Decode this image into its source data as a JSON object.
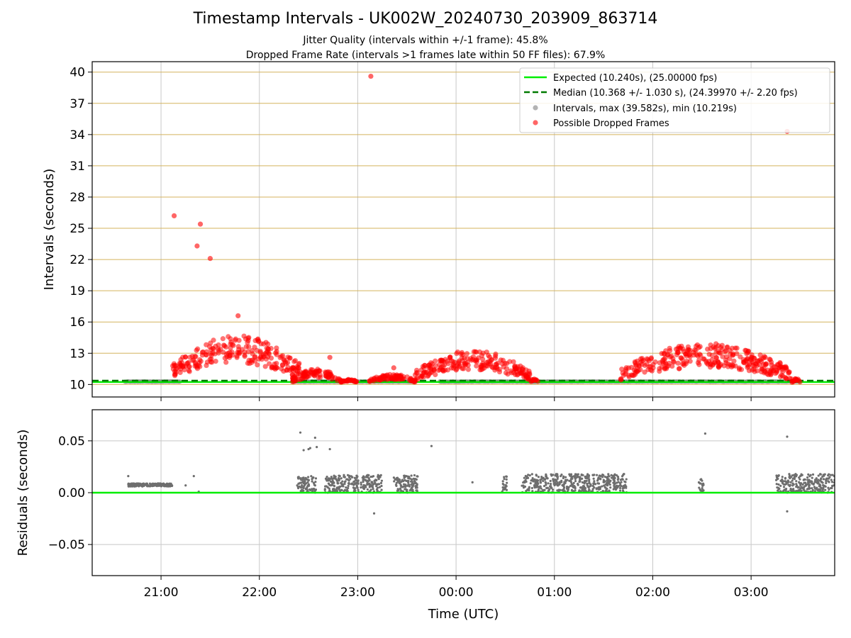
{
  "chart_data": [
    {
      "type": "scatter",
      "title": "Timestamp Intervals - UK002W_20240730_203909_863714",
      "subtitle_1": "Jitter Quality (intervals within +/-1 frame): 45.8%",
      "subtitle_2": "Dropped Frame Rate (intervals >1 frames late within 50 FF files): 67.9%",
      "ylabel": "Intervals (seconds)",
      "xlim": [
        "20:18",
        "03:51"
      ],
      "ylim": [
        8.8,
        41.0
      ],
      "yticks": [
        10,
        13,
        16,
        19,
        22,
        25,
        28,
        31,
        34,
        37,
        40
      ],
      "yticks_labels": [
        "10",
        "13",
        "16",
        "19",
        "22",
        "25",
        "28",
        "31",
        "34",
        "37",
        "40"
      ],
      "grid": "horizontal lines gold, vertical lines grey",
      "legend_position": "top-right",
      "series": [
        {
          "name": "Expected (10.240s), (25.00000 fps)",
          "kind": "hline",
          "value": 10.24,
          "color": "#00ee00"
        },
        {
          "name": "Median (10.368 +/- 1.030 s), (24.39970 +/- 2.20 fps)",
          "kind": "hline-dashed",
          "value": 10.368,
          "color": "#007a00"
        },
        {
          "name": "Intervals, max (39.582s), min (10.219s)",
          "kind": "scatter",
          "color": "#808080",
          "segments": [
            [
              "20:38",
              "21:12"
            ],
            [
              "22:20",
              "22:50"
            ],
            [
              "23:00",
              "23:35"
            ],
            [
              "23:50",
              "00:50"
            ],
            [
              "00:40",
              "01:45"
            ],
            [
              "01:45",
              "03:30"
            ]
          ]
        },
        {
          "name": "Possible Dropped Frames",
          "kind": "scatter",
          "color": "#ff0000",
          "clusters": [
            {
              "start": "21:07",
              "end": "22:25",
              "lo": 10.6,
              "hi": 14.8
            },
            {
              "start": "22:20",
              "end": "22:50",
              "lo": 10.2,
              "hi": 11.5
            },
            {
              "start": "22:50",
              "end": "23:00",
              "lo": 10.2,
              "hi": 10.5
            },
            {
              "start": "23:07",
              "end": "23:35",
              "lo": 10.2,
              "hi": 11.0
            },
            {
              "start": "23:35",
              "end": "00:45",
              "lo": 10.4,
              "hi": 13.3
            },
            {
              "start": "00:45",
              "end": "00:50",
              "lo": 10.2,
              "hi": 10.6
            },
            {
              "start": "01:40",
              "end": "03:25",
              "lo": 10.4,
              "hi": 14.0
            },
            {
              "start": "03:25",
              "end": "03:30",
              "lo": 10.2,
              "hi": 10.6
            }
          ],
          "outliers": [
            {
              "x": "21:08",
              "y": 26.2
            },
            {
              "x": "21:22",
              "y": 23.3
            },
            {
              "x": "21:24",
              "y": 25.4
            },
            {
              "x": "21:30",
              "y": 22.1
            },
            {
              "x": "21:47",
              "y": 16.6
            },
            {
              "x": "23:08",
              "y": 39.6
            },
            {
              "x": "03:22",
              "y": 34.3
            },
            {
              "x": "22:43",
              "y": 12.6
            },
            {
              "x": "23:22",
              "y": 11.6
            }
          ]
        }
      ]
    },
    {
      "type": "scatter",
      "xlabel": "Time (UTC)",
      "ylabel": "Residuals (seconds)",
      "xlim": [
        "20:18",
        "03:51"
      ],
      "ylim": [
        -0.08,
        0.08
      ],
      "yticks": [
        -0.05,
        0.0,
        0.05
      ],
      "yticks_labels": [
        "−0.05",
        "0.00",
        "0.05"
      ],
      "xticks": [
        "21:00",
        "22:00",
        "23:00",
        "00:00",
        "01:00",
        "02:00",
        "03:00"
      ],
      "grid": "grey",
      "series": [
        {
          "kind": "hline",
          "value": 0.0,
          "color": "#00ee00"
        },
        {
          "kind": "scatter",
          "color": "#6e6e6e",
          "points": [
            {
              "x": "20:40",
              "y": 0.016
            },
            {
              "x": "21:20",
              "y": 0.016
            },
            {
              "x": "21:23",
              "y": 0.001
            },
            {
              "x": "21:15",
              "y": 0.007
            },
            {
              "x": "22:25",
              "y": 0.058
            },
            {
              "x": "22:27",
              "y": 0.041
            },
            {
              "x": "22:30",
              "y": 0.042
            },
            {
              "x": "22:31",
              "y": 0.043
            },
            {
              "x": "22:34",
              "y": 0.053
            },
            {
              "x": "22:35",
              "y": 0.044
            },
            {
              "x": "22:43",
              "y": 0.042
            },
            {
              "x": "23:10",
              "y": -0.02
            },
            {
              "x": "23:45",
              "y": 0.045
            },
            {
              "x": "00:10",
              "y": 0.01
            },
            {
              "x": "02:32",
              "y": 0.057
            },
            {
              "x": "03:22",
              "y": 0.054
            },
            {
              "x": "03:22",
              "y": -0.018
            }
          ],
          "bands": [
            {
              "start": "20:40",
              "end": "21:07",
              "lo": 0.006,
              "hi": 0.009
            },
            {
              "start": "22:23",
              "end": "22:35",
              "lo": 0.0,
              "hi": 0.016
            },
            {
              "start": "22:40",
              "end": "23:15",
              "lo": 0.0,
              "hi": 0.017
            },
            {
              "start": "23:22",
              "end": "23:37",
              "lo": 0.0,
              "hi": 0.017
            },
            {
              "start": "00:28",
              "end": "00:31",
              "lo": 0.0,
              "hi": 0.016
            },
            {
              "start": "00:40",
              "end": "01:44",
              "lo": 0.0,
              "hi": 0.018
            },
            {
              "start": "02:28",
              "end": "02:31",
              "lo": 0.0,
              "hi": 0.014
            },
            {
              "start": "03:15",
              "end": "03:51",
              "lo": 0.0,
              "hi": 0.018
            }
          ]
        }
      ]
    }
  ]
}
